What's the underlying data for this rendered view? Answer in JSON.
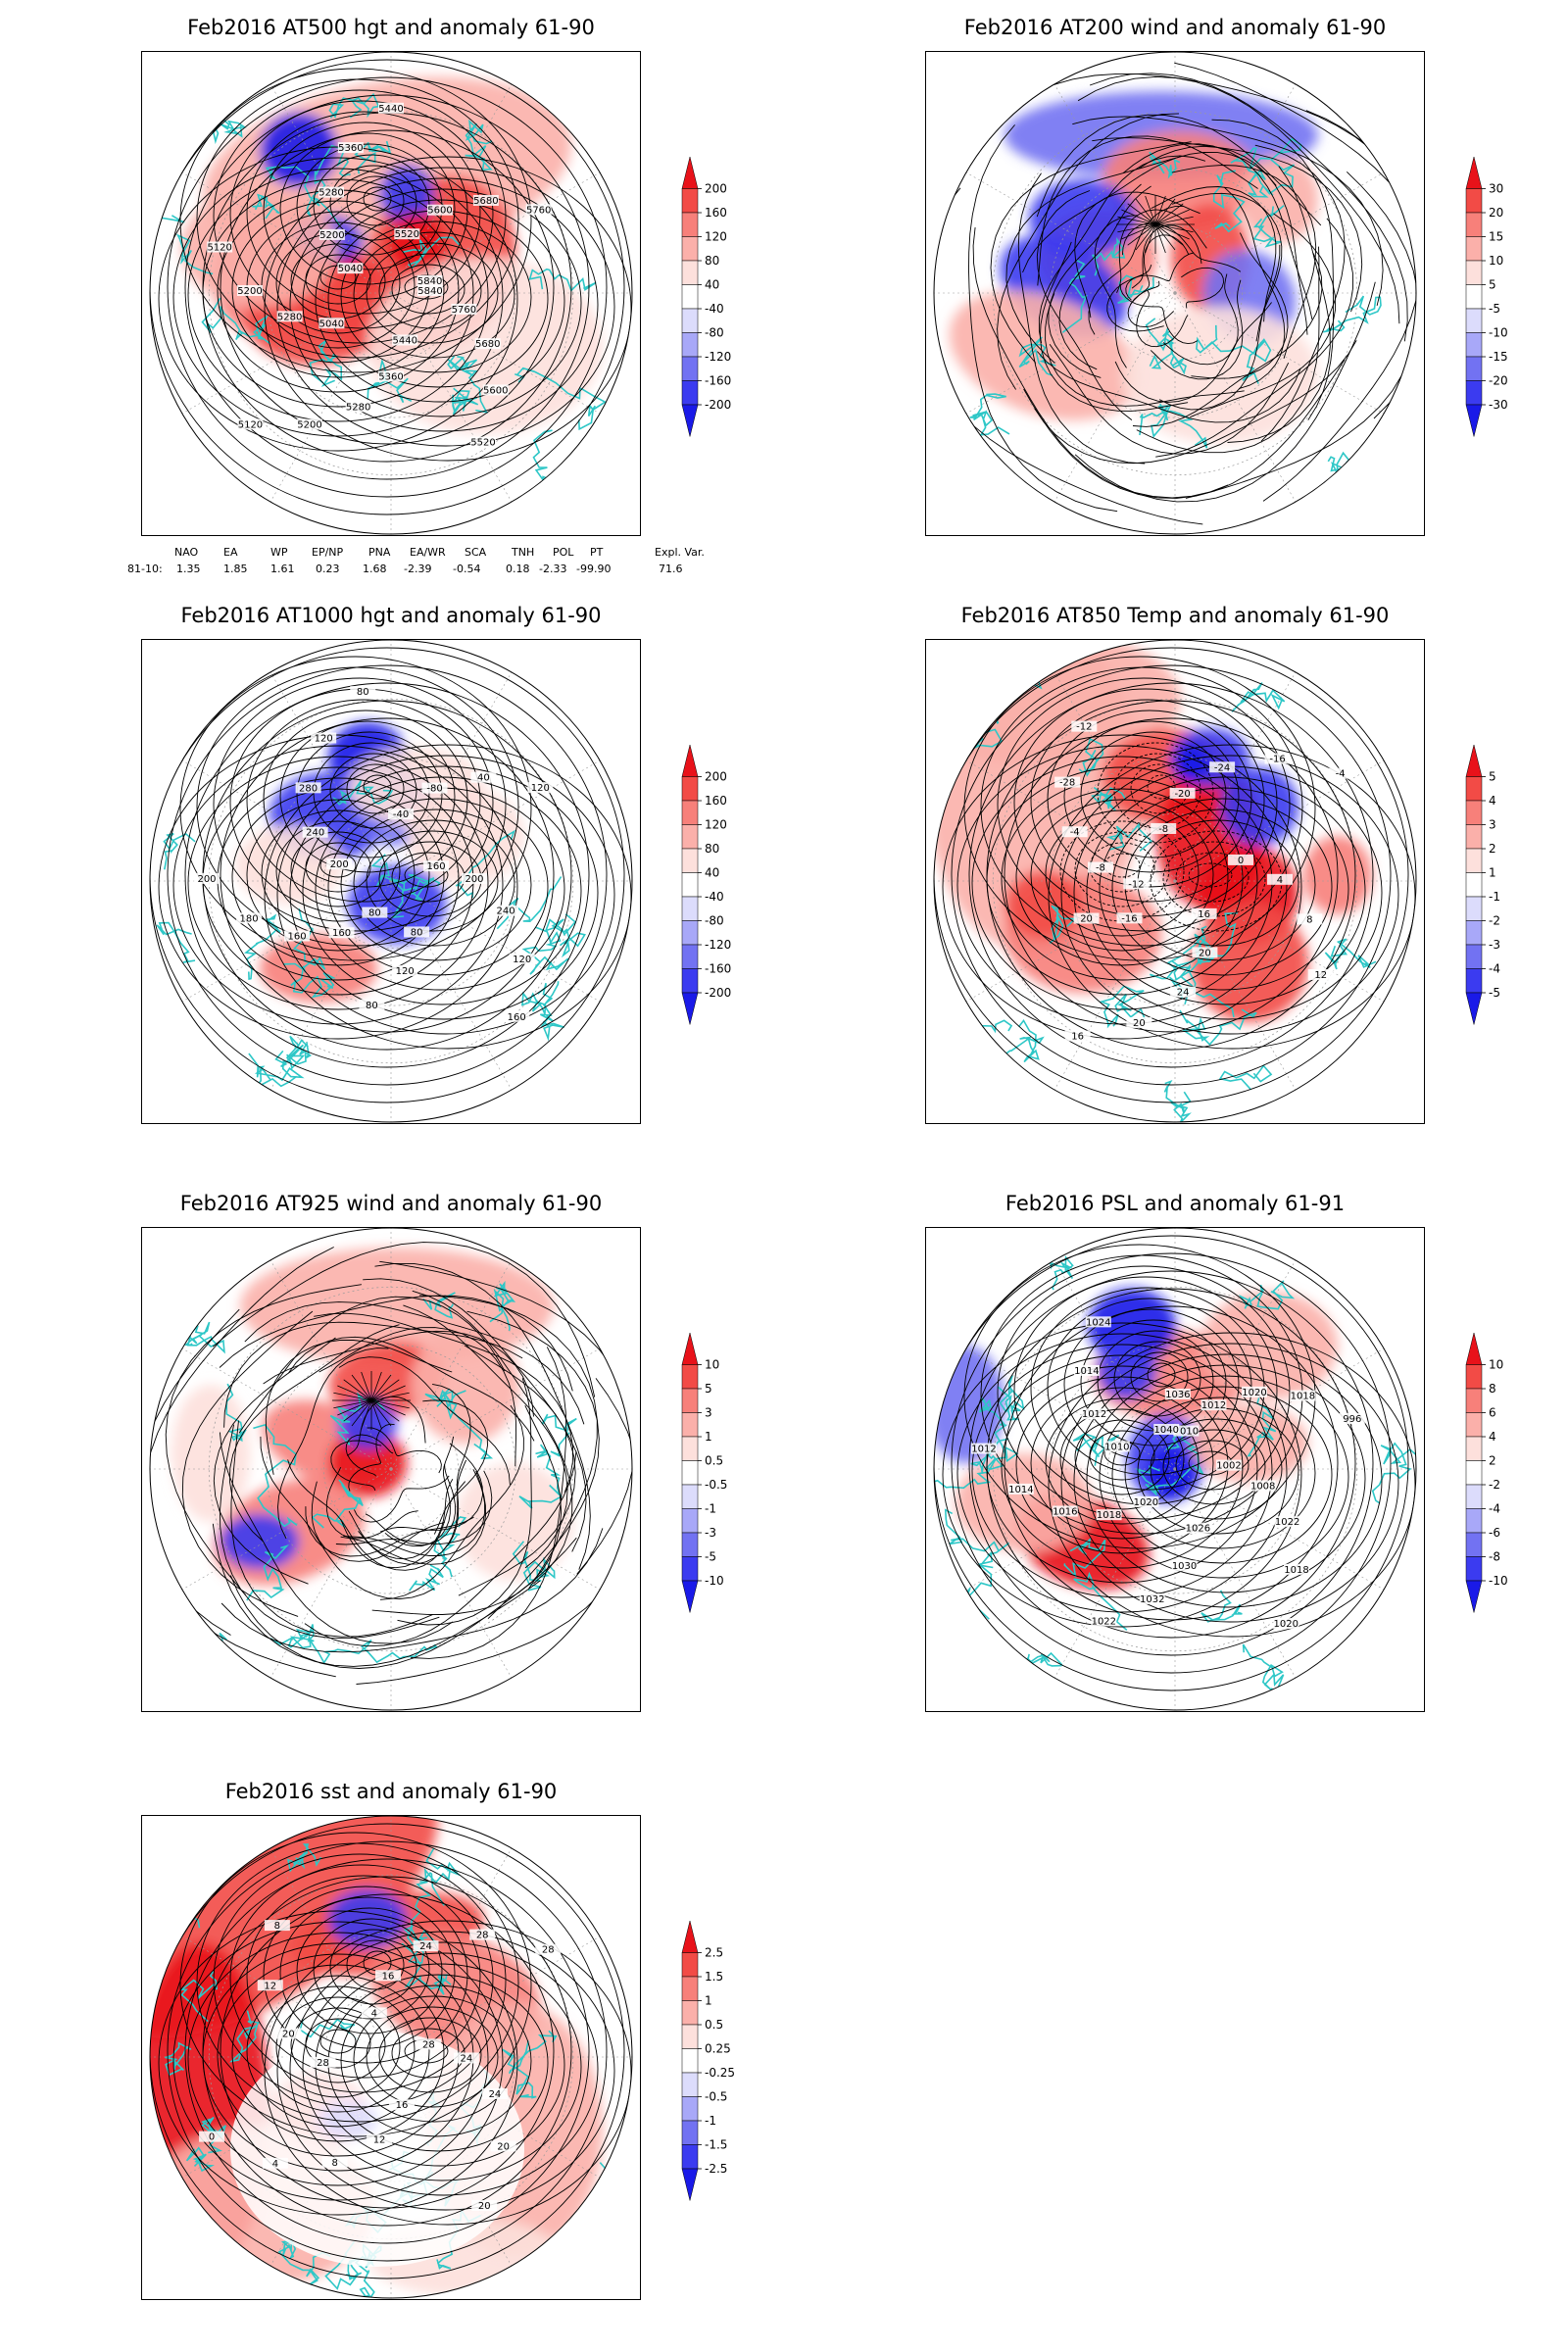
{
  "panels": [
    {
      "id": "p500",
      "title": "Feb2016 AT500 hgt and anomaly 61-90",
      "variable": "hgt",
      "colorbar": {
        "labels": [
          "200",
          "160",
          "120",
          "80",
          "40",
          "-40",
          "-80",
          "-120",
          "-160",
          "-200"
        ],
        "colors": [
          "#e8121a",
          "#f24b46",
          "#f7807a",
          "#fbb0aa",
          "#fde0dc",
          "#ffffff",
          "#dcdcfc",
          "#a8a8f8",
          "#7272f2",
          "#3b3bf0",
          "#1a1ae8"
        ]
      },
      "contour_labels": [
        "5840",
        "5760",
        "5680",
        "5600",
        "5520",
        "5440",
        "5360",
        "5280",
        "5200",
        "5120",
        "5040",
        "5280",
        "5200",
        "5120",
        "5040",
        "5200",
        "5280",
        "5360",
        "5440",
        "5520",
        "5600",
        "5680",
        "5760",
        "5840"
      ]
    },
    {
      "id": "p200",
      "title": "Feb2016 AT200 wind and anomaly 61-90",
      "variable": "wind",
      "colorbar": {
        "labels": [
          "30",
          "20",
          "15",
          "10",
          "5",
          "-5",
          "-10",
          "-15",
          "-20",
          "-30"
        ],
        "colors": [
          "#e8121a",
          "#f24b46",
          "#f7807a",
          "#fbb0aa",
          "#fde0dc",
          "#ffffff",
          "#dcdcfc",
          "#a8a8f8",
          "#7272f2",
          "#3b3bf0",
          "#1a1ae8"
        ]
      },
      "contour_labels": []
    },
    {
      "id": "p1000",
      "title": "Feb2016 AT1000 hgt and anomaly 61-90",
      "variable": "hgt",
      "colorbar": {
        "labels": [
          "200",
          "160",
          "120",
          "80",
          "40",
          "-40",
          "-80",
          "-120",
          "-160",
          "-200"
        ],
        "colors": [
          "#e8121a",
          "#f24b46",
          "#f7807a",
          "#fbb0aa",
          "#fde0dc",
          "#ffffff",
          "#dcdcfc",
          "#a8a8f8",
          "#7272f2",
          "#3b3bf0",
          "#1a1ae8"
        ]
      },
      "contour_labels": [
        "80",
        "160",
        "160",
        "180",
        "200",
        "200",
        "240",
        "280",
        "120",
        "80",
        "-40",
        "-80",
        "40",
        "120",
        "160",
        "200",
        "240",
        "120",
        "160",
        "80",
        "120",
        "80"
      ]
    },
    {
      "id": "p850",
      "title": "Feb2016 AT850 Temp and anomaly 61-90",
      "variable": "temp",
      "colorbar": {
        "labels": [
          "5",
          "4",
          "3",
          "2",
          "1",
          "-1",
          "-2",
          "-3",
          "-4",
          "-5"
        ],
        "colors": [
          "#e8121a",
          "#f24b46",
          "#f7807a",
          "#fbb0aa",
          "#fde0dc",
          "#ffffff",
          "#dcdcfc",
          "#a8a8f8",
          "#7272f2",
          "#3b3bf0",
          "#1a1ae8"
        ]
      },
      "contour_labels": [
        "-12",
        "-8",
        "-4",
        "-28",
        "-12",
        "-8",
        "-20",
        "-24",
        "-16",
        "-4",
        "0",
        "4",
        "8",
        "12",
        "16",
        "20",
        "24",
        "20",
        "16",
        "-16",
        "20"
      ]
    },
    {
      "id": "p925",
      "title": "Feb2016 AT925 wind and anomaly 61-90",
      "variable": "wind",
      "colorbar": {
        "labels": [
          "10",
          "5",
          "3",
          "1",
          "0.5",
          "-0.5",
          "-1",
          "-3",
          "-5",
          "-10"
        ],
        "colors": [
          "#e8121a",
          "#f24b46",
          "#f7807a",
          "#fbb0aa",
          "#fde0dc",
          "#ffffff",
          "#dcdcfc",
          "#a8a8f8",
          "#7272f2",
          "#3b3bf0",
          "#1a1ae8"
        ]
      },
      "contour_labels": []
    },
    {
      "id": "psl",
      "title": "Feb2016 PSL and anomaly 61-91",
      "variable": "psl",
      "colorbar": {
        "labels": [
          "10",
          "8",
          "6",
          "4",
          "2",
          "-2",
          "-4",
          "-6",
          "-8",
          "-10"
        ],
        "colors": [
          "#e8121a",
          "#f24b46",
          "#f7807a",
          "#fbb0aa",
          "#fde0dc",
          "#ffffff",
          "#dcdcfc",
          "#a8a8f8",
          "#7272f2",
          "#3b3bf0",
          "#1a1ae8"
        ]
      },
      "contour_labels": [
        "1010",
        "1012",
        "1020",
        "1018",
        "996",
        "1002",
        "1008",
        "1022",
        "1018",
        "1020",
        "1026",
        "1030",
        "1032",
        "1022",
        "1020",
        "1018",
        "1016",
        "1014",
        "1012",
        "1010",
        "1012",
        "1014",
        "1024",
        "1040",
        "1036"
      ]
    },
    {
      "id": "sst",
      "title": "Feb2016 sst and anomaly 61-90",
      "variable": "sst",
      "colorbar": {
        "labels": [
          "2.5",
          "1.5",
          "1",
          "0.5",
          "0.25",
          "-0.25",
          "-0.5",
          "-1",
          "-1.5",
          "-2.5"
        ],
        "colors": [
          "#e8121a",
          "#f24b46",
          "#f7807a",
          "#fbb0aa",
          "#fde0dc",
          "#ffffff",
          "#dcdcfc",
          "#a8a8f8",
          "#7272f2",
          "#3b3bf0",
          "#1a1ae8"
        ]
      },
      "contour_labels": [
        "28",
        "24",
        "24",
        "20",
        "20",
        "16",
        "12",
        "8",
        "4",
        "0",
        "28",
        "20",
        "12",
        "8",
        "4",
        "16",
        "24",
        "28",
        "28"
      ]
    }
  ],
  "index_table": {
    "headers": [
      "NAO",
      "EA",
      "WP",
      "EP/NP",
      "PNA",
      "EA/WR",
      "SCA",
      "TNH",
      "POL",
      "PT",
      "Expl. Var."
    ],
    "row_label": "81-10:",
    "values": [
      "1.35",
      "1.85",
      "1.61",
      "0.23",
      "1.68",
      "-2.39",
      "-0.54",
      "0.18",
      "-2.33",
      "-99.90",
      "71.6"
    ]
  },
  "chart_data": [
    {
      "type": "heatmap",
      "title": "Feb2016 AT500 hgt and anomaly 61-90",
      "legend_levels": [
        -200,
        -160,
        -120,
        -80,
        -40,
        40,
        80,
        120,
        160,
        200
      ],
      "projection": "polar stereographic (Northern Hemisphere)",
      "grid": true
    },
    {
      "type": "heatmap",
      "title": "Feb2016 AT200 wind and anomaly 61-90",
      "legend_levels": [
        -30,
        -20,
        -15,
        -10,
        -5,
        5,
        10,
        15,
        20,
        30
      ],
      "projection": "polar stereographic (Northern Hemisphere)",
      "grid": true
    },
    {
      "type": "heatmap",
      "title": "Feb2016 AT1000 hgt and anomaly 61-90",
      "legend_levels": [
        -200,
        -160,
        -120,
        -80,
        -40,
        40,
        80,
        120,
        160,
        200
      ],
      "projection": "polar stereographic (Northern Hemisphere)",
      "grid": true
    },
    {
      "type": "heatmap",
      "title": "Feb2016 AT850 Temp and anomaly 61-90",
      "legend_levels": [
        -5,
        -4,
        -3,
        -2,
        -1,
        1,
        2,
        3,
        4,
        5
      ],
      "projection": "polar stereographic (Northern Hemisphere)",
      "grid": true
    },
    {
      "type": "heatmap",
      "title": "Feb2016 AT925 wind and anomaly 61-90",
      "legend_levels": [
        -10,
        -5,
        -3,
        -1,
        -0.5,
        0.5,
        1,
        3,
        5,
        10
      ],
      "projection": "polar stereographic (Northern Hemisphere)",
      "grid": true
    },
    {
      "type": "heatmap",
      "title": "Feb2016 PSL and anomaly 61-91",
      "legend_levels": [
        -10,
        -8,
        -6,
        -4,
        -2,
        2,
        4,
        6,
        8,
        10
      ],
      "projection": "polar stereographic (Northern Hemisphere)",
      "grid": true
    },
    {
      "type": "heatmap",
      "title": "Feb2016 sst and anomaly 61-90",
      "legend_levels": [
        -2.5,
        -1.5,
        -1,
        -0.5,
        -0.25,
        0.25,
        0.5,
        1,
        1.5,
        2.5
      ],
      "projection": "polar stereographic (Northern Hemisphere)",
      "grid": true
    }
  ]
}
